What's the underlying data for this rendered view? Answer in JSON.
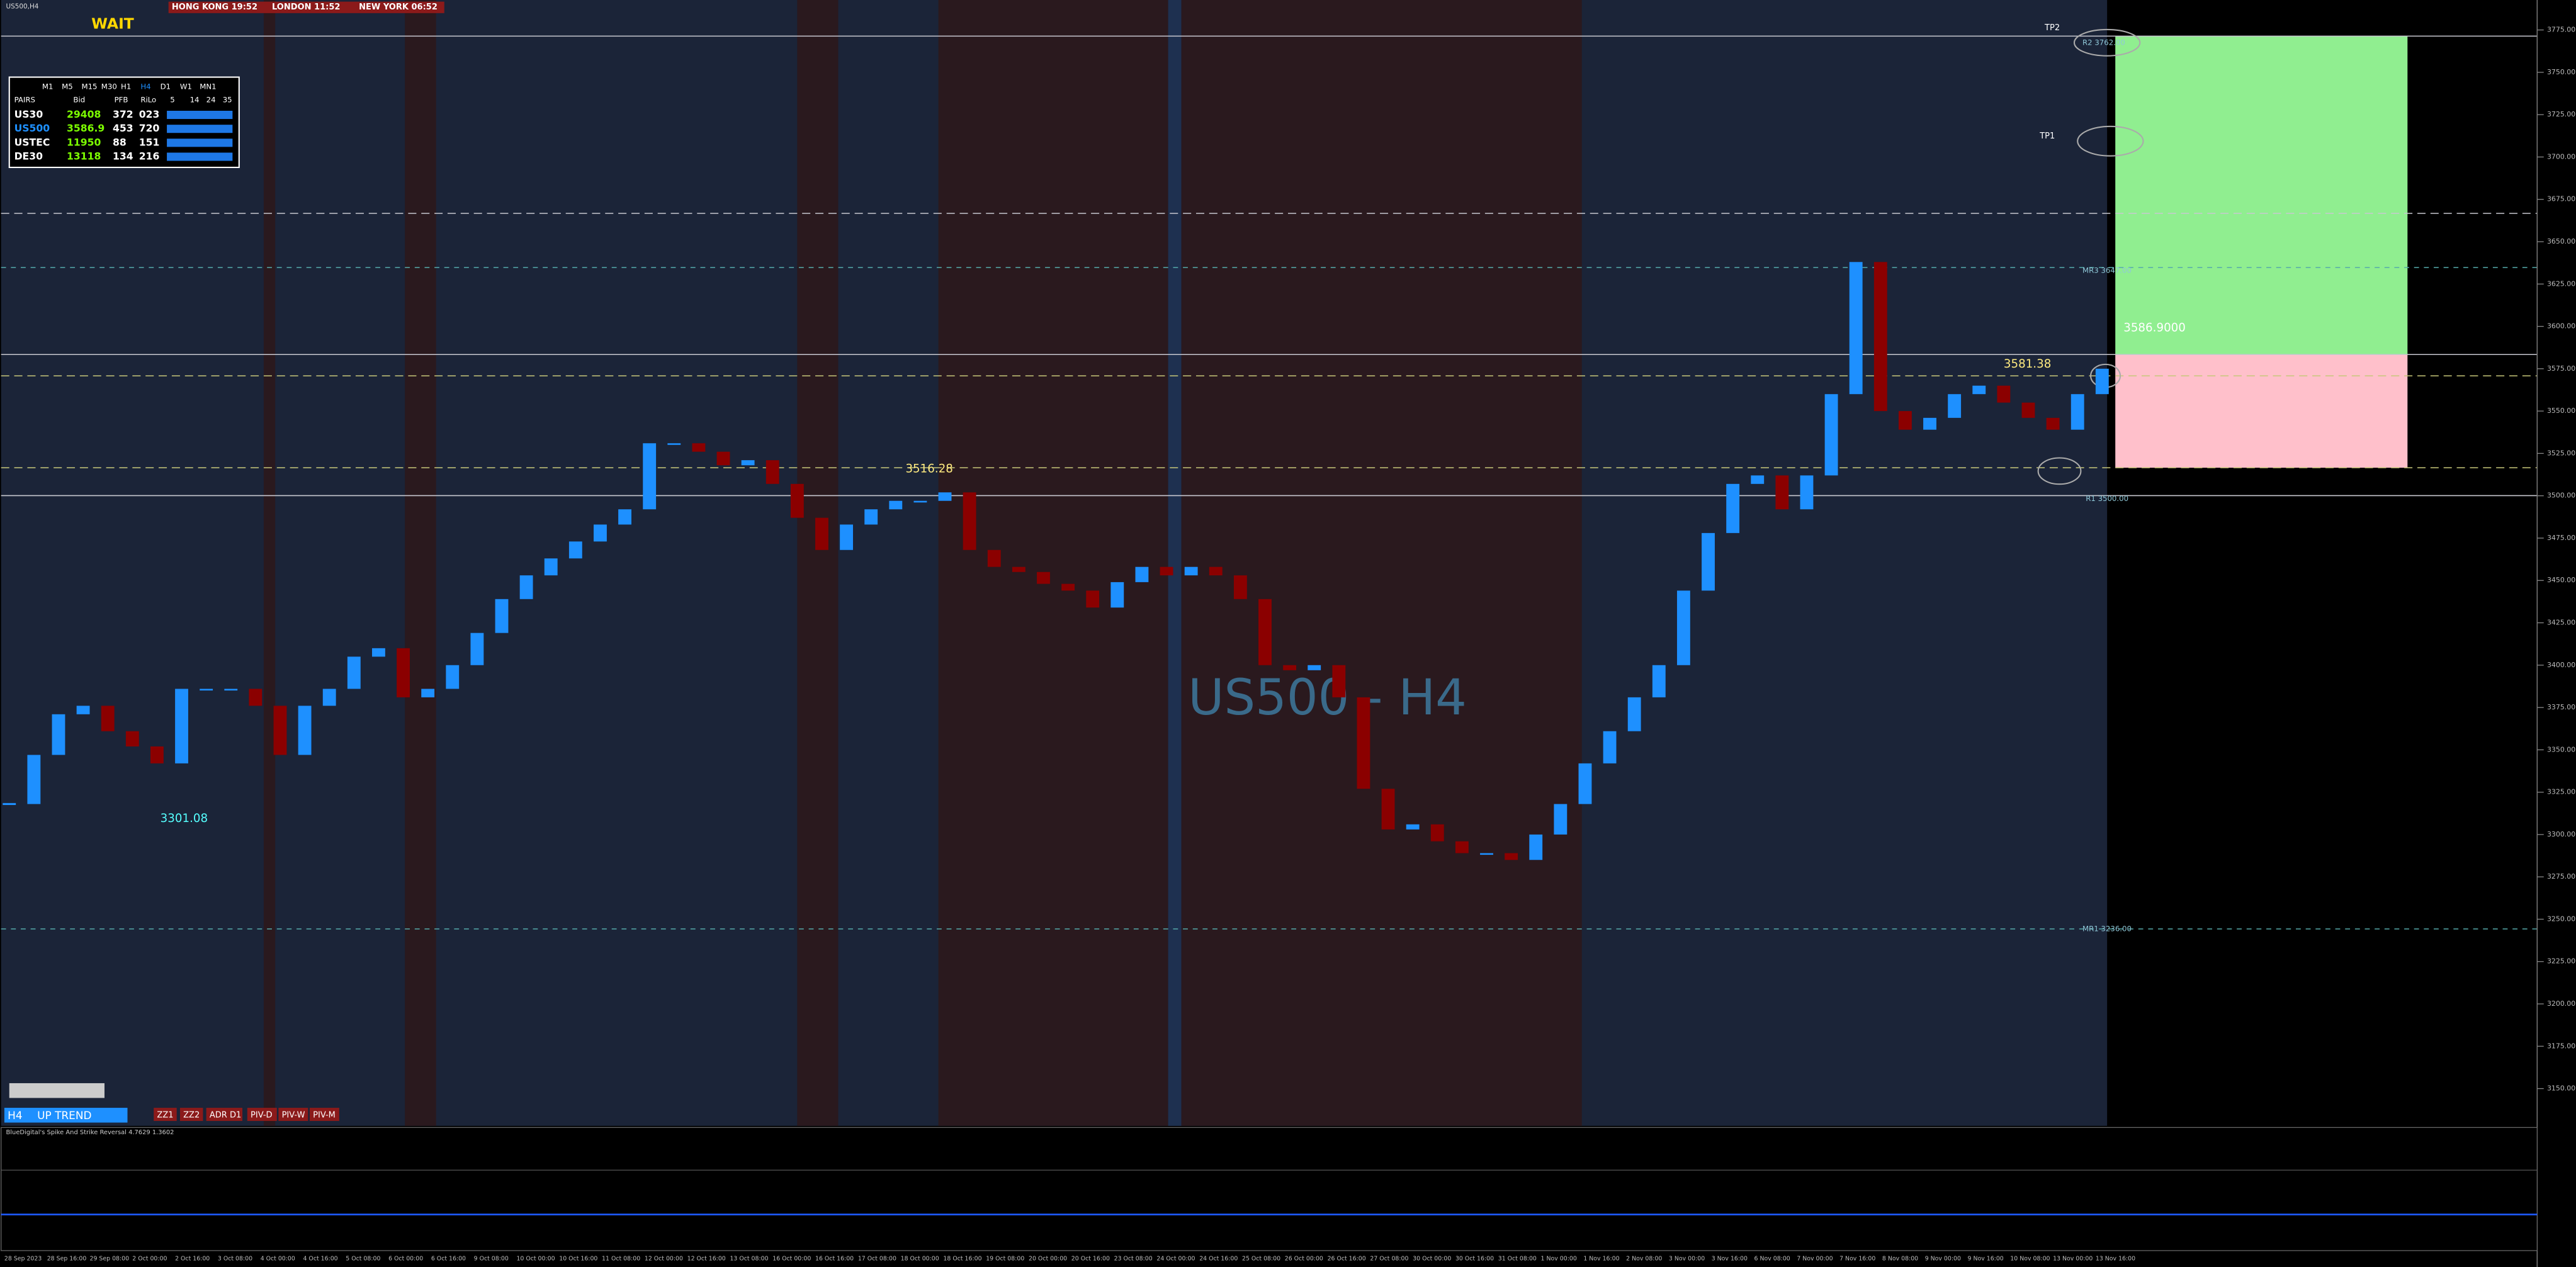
{
  "window_title": "US500,H4",
  "status": "WAIT",
  "sessions": [
    "HONG KONG 19:52",
    "LONDON 11:52",
    "NEW YORK 06:52"
  ],
  "dashboard": {
    "timeframes": [
      "M1",
      "M5",
      "M15",
      "M30",
      "H1",
      "H4",
      "D1",
      "W1",
      "MN1"
    ],
    "header": [
      "PAIRS",
      "Bid",
      "PFB",
      "RiLo",
      "5",
      "14",
      "24",
      "35"
    ],
    "rows": [
      [
        "US30",
        "29408",
        "372",
        "023"
      ],
      [
        "US500",
        "3586.9",
        "453",
        "720"
      ],
      [
        "USTEC",
        "11950",
        "88",
        "151"
      ],
      [
        "DE30",
        "13118",
        "134",
        "216"
      ]
    ]
  },
  "levels": [
    "R2 3762.00",
    "MR3 3647.00",
    "R1 3500.00",
    "MR1 3236.00"
  ],
  "annotations": [
    "TP2",
    "TP1",
    "3586.9000",
    "3581.38",
    "3516.28",
    "3301.08"
  ],
  "toolbar": [
    "H4",
    "UP TREND"
  ],
  "buttons": [
    "ZZ1",
    "ZZ2",
    "ADR D1",
    "PIV-D",
    "PIV-W",
    "PIV-M"
  ],
  "indicator": "BlueDigital's Spike And Strike Reversal 4.7629 1.3602",
  "chart_data": {
    "type": "candlestick",
    "title": "US500 - H4",
    "closes": [
      3318,
      3347,
      3371,
      3376,
      3361,
      3352,
      3342,
      3386,
      3386,
      3386,
      3376,
      3347,
      3376,
      3386,
      3405,
      3410,
      3381,
      3386,
      3400,
      3419,
      3439,
      3453,
      3463,
      3473,
      3483,
      3492,
      3531,
      3531,
      3526,
      3518,
      3521,
      3507,
      3487,
      3468,
      3483,
      3492,
      3497,
      3497,
      3502,
      3468,
      3458,
      3455,
      3448,
      3444,
      3434,
      3449,
      3458,
      3453,
      3458,
      3453,
      3439,
      3400,
      3397,
      3400,
      3381,
      3327,
      3303,
      3306,
      3296,
      3289,
      3289,
      3285,
      3300,
      3318,
      3342,
      3361,
      3381,
      3400,
      3444,
      3478,
      3507,
      3512,
      3492,
      3512,
      3560,
      3638,
      3550,
      3539,
      3546,
      3560,
      3565,
      3555,
      3546,
      3539,
      3560,
      3575
    ],
    "ylim": [
      3128,
      3783
    ],
    "yticks": [
      {
        "value": 3150,
        "label": "3150.00"
      },
      {
        "value": 3175,
        "label": "3175.00"
      },
      {
        "value": 3200,
        "label": "3200.00"
      },
      {
        "value": 3225,
        "label": "3225.00"
      },
      {
        "value": 3250,
        "label": "3250.00"
      },
      {
        "value": 3275,
        "label": "3275.00"
      },
      {
        "value": 3300,
        "label": "3300.00"
      },
      {
        "value": 3325,
        "label": "3325.00"
      },
      {
        "value": 3350,
        "label": "3350.00"
      },
      {
        "value": 3375,
        "label": "3375.00"
      },
      {
        "value": 3400,
        "label": "3400.00"
      },
      {
        "value": 3425,
        "label": "3425.00"
      },
      {
        "value": 3450,
        "label": "3450.00"
      },
      {
        "value": 3475,
        "label": "3475.00"
      },
      {
        "value": 3500,
        "label": "3500.00"
      },
      {
        "value": 3525,
        "label": "3525.00"
      },
      {
        "value": 3550,
        "label": "3550.00"
      },
      {
        "value": 3575,
        "label": "3575.00"
      },
      {
        "value": 3600,
        "label": "3600.00"
      },
      {
        "value": 3625,
        "label": "3625.00"
      },
      {
        "value": 3650,
        "label": "3650.00"
      },
      {
        "value": 3675,
        "label": "3675.00"
      },
      {
        "value": 3700,
        "label": "3700.00"
      },
      {
        "value": 3725,
        "label": "3725.00"
      },
      {
        "value": 3750,
        "label": "3750.00"
      },
      {
        "value": 3775,
        "label": "3775.00"
      }
    ],
    "time_labels": [
      "28 Sep 2023",
      "28 Sep 16:00",
      "29 Sep 08:00",
      "2 Oct 00:00",
      "2 Oct 16:00",
      "3 Oct 08:00",
      "4 Oct 00:00",
      "4 Oct 16:00",
      "5 Oct 08:00",
      "6 Oct 00:00",
      "6 Oct 16:00",
      "9 Oct 08:00",
      "10 Oct 00:00",
      "10 Oct 16:00",
      "11 Oct 08:00",
      "12 Oct 00:00",
      "12 Oct 16:00",
      "13 Oct 08:00",
      "16 Oct 00:00",
      "16 Oct 16:00",
      "17 Oct 08:00",
      "18 Oct 00:00",
      "18 Oct 16:00",
      "19 Oct 08:00",
      "20 Oct 00:00",
      "20 Oct 16:00",
      "23 Oct 08:00",
      "24 Oct 00:00",
      "24 Oct 16:00",
      "25 Oct 08:00",
      "26 Oct 00:00",
      "26 Oct 16:00",
      "27 Oct 08:00",
      "30 Oct 00:00",
      "30 Oct 16:00",
      "31 Oct 08:00",
      "1 Nov 00:00",
      "1 Nov 16:00",
      "2 Nov 08:00",
      "3 Nov 00:00",
      "3 Nov 16:00",
      "6 Nov 08:00",
      "7 Nov 00:00",
      "7 Nov 16:00",
      "8 Nov 08:00",
      "9 Nov 00:00",
      "9 Nov 16:00",
      "10 Nov 08:00",
      "13 Nov 00:00",
      "13 Nov 16:00"
    ]
  }
}
